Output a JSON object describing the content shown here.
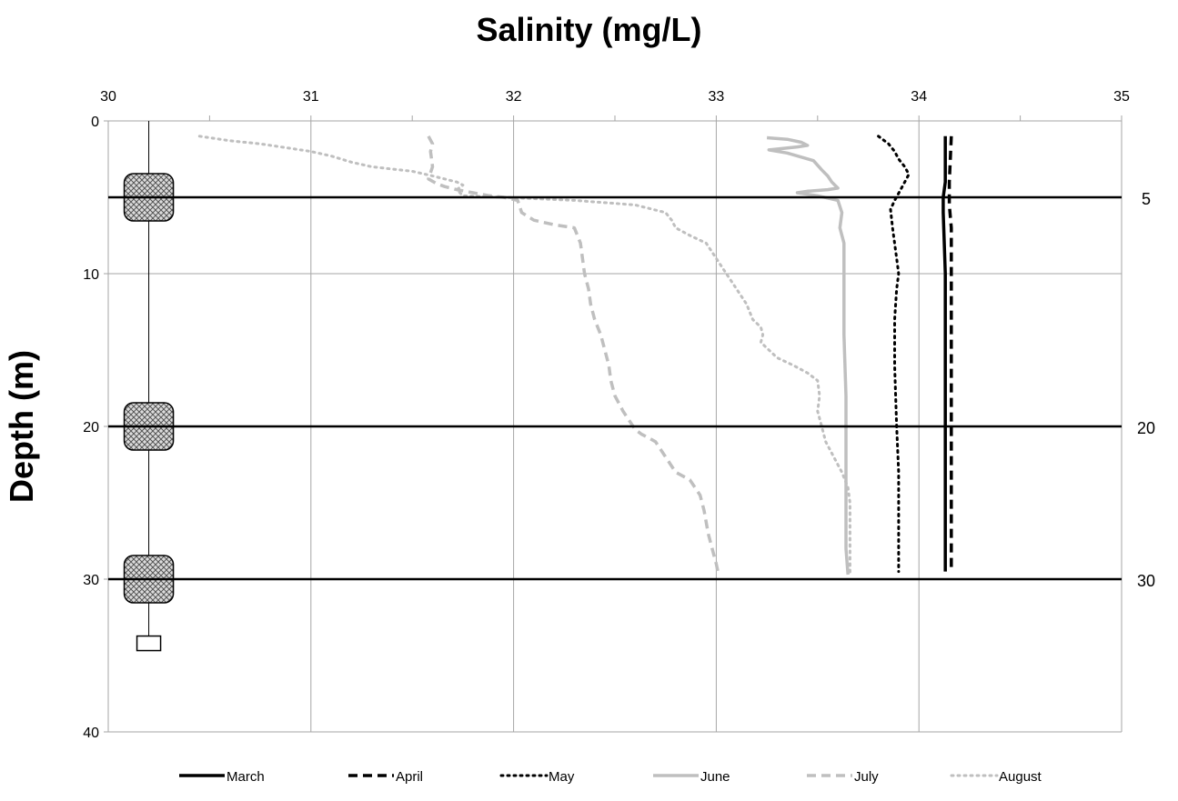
{
  "chart_data": {
    "type": "line",
    "title": "Salinity (mg/L)",
    "xlabel": "",
    "ylabel": "Depth (m)",
    "xlim": [
      30,
      35
    ],
    "ylim": [
      0,
      40
    ],
    "y_reversed": true,
    "x_axis_position": "top",
    "x_ticks": [
      "30",
      "31",
      "32",
      "33",
      "34",
      "35"
    ],
    "y_ticks": [
      "0",
      "10",
      "20",
      "30",
      "40"
    ],
    "secondary_y_ticks": [
      "5",
      "20",
      "30"
    ],
    "grid": true,
    "legend_position": "bottom",
    "reference_depths": [
      5,
      20,
      30
    ],
    "mooring": {
      "x": 30.2,
      "top_depth": 0,
      "bottom_depth": 34.2,
      "sensor_depths": [
        5,
        20,
        30
      ],
      "anchor_depth": 34.2
    },
    "series": [
      {
        "name": "March",
        "style": "solid-black",
        "x": [
          34.13,
          34.13,
          34.12,
          34.12,
          34.13,
          34.13,
          34.13,
          34.13,
          34.13
        ],
        "y": [
          1,
          4,
          5,
          6,
          10,
          15,
          20,
          25,
          29.5
        ]
      },
      {
        "name": "April",
        "style": "dashed-black",
        "x": [
          34.16,
          34.15,
          34.15,
          34.16,
          34.16,
          34.16,
          34.16,
          34.16,
          34.16
        ],
        "y": [
          1,
          4,
          5.5,
          7,
          12,
          18,
          22,
          26,
          29.5
        ]
      },
      {
        "name": "May",
        "style": "dotted-black",
        "x": [
          33.8,
          33.85,
          33.88,
          33.9,
          33.93,
          33.95,
          33.91,
          33.88,
          33.86,
          33.87,
          33.89,
          33.9,
          33.89,
          33.88,
          33.88,
          33.89,
          33.9,
          33.9,
          33.9
        ],
        "y": [
          1,
          1.5,
          2,
          2.5,
          3,
          3.5,
          4.5,
          5.2,
          5.8,
          7,
          9,
          10,
          11,
          13,
          16,
          20,
          23,
          26,
          29.5
        ]
      },
      {
        "name": "June",
        "style": "solid-gray",
        "x": [
          33.25,
          33.35,
          33.42,
          33.45,
          33.4,
          33.33,
          33.26,
          33.35,
          33.48,
          33.52,
          33.55,
          33.57,
          33.6,
          33.55,
          33.45,
          33.4,
          33.5,
          33.6,
          33.62,
          33.61,
          33.63,
          33.63,
          33.63,
          33.64,
          33.64,
          33.64,
          33.64,
          33.64,
          33.65
        ],
        "y": [
          1.1,
          1.2,
          1.4,
          1.6,
          1.7,
          1.8,
          1.9,
          2.1,
          2.6,
          3.2,
          3.6,
          4.0,
          4.4,
          4.5,
          4.6,
          4.7,
          4.9,
          5.2,
          6,
          7,
          8,
          10,
          14,
          18,
          20,
          22,
          25,
          28,
          29.7
        ]
      },
      {
        "name": "July",
        "style": "dashed-gray",
        "x": [
          31.58,
          31.6,
          31.59,
          31.6,
          31.58,
          31.62,
          31.66,
          31.72,
          31.8,
          31.88,
          31.95,
          32.02,
          32.04,
          32.1,
          32.2,
          32.3,
          32.33,
          32.35,
          32.37,
          32.38,
          32.4,
          32.43,
          32.45,
          32.47,
          32.48,
          32.5,
          32.52,
          32.54,
          32.57,
          32.6,
          32.63,
          32.66,
          32.7,
          32.75,
          32.8,
          32.87,
          32.92,
          32.94,
          32.96,
          32.98,
          33.0,
          33.01
        ],
        "y": [
          1,
          1.5,
          2,
          3,
          3.8,
          4.1,
          4.3,
          4.5,
          4.7,
          4.9,
          5.0,
          5.2,
          6.0,
          6.5,
          6.8,
          7.0,
          8,
          10,
          11,
          12,
          13,
          14,
          15,
          16,
          17,
          18,
          18.5,
          19,
          19.6,
          20.2,
          20.5,
          20.7,
          21,
          22,
          23,
          23.5,
          24.5,
          25.5,
          27,
          28,
          29,
          29.6
        ]
      },
      {
        "name": "August",
        "style": "dotted-gray",
        "x": [
          30.45,
          30.6,
          30.75,
          30.9,
          31.0,
          31.1,
          31.2,
          31.3,
          31.5,
          31.6,
          31.72,
          31.75,
          31.72,
          31.75,
          31.95,
          32.3,
          32.6,
          32.75,
          32.78,
          32.8,
          32.87,
          32.95,
          33.0,
          33.05,
          33.1,
          33.15,
          33.18,
          33.22,
          33.23,
          33.22,
          33.26,
          33.3,
          33.38,
          33.45,
          33.5,
          33.51,
          33.5,
          33.52,
          33.54,
          33.58,
          33.62,
          33.65,
          33.66,
          33.66,
          33.66
        ],
        "y": [
          1,
          1.3,
          1.5,
          1.8,
          2.0,
          2.3,
          2.7,
          3.0,
          3.3,
          3.6,
          4.0,
          4.2,
          4.5,
          4.9,
          5.0,
          5.2,
          5.5,
          6.0,
          6.5,
          7.0,
          7.5,
          8.0,
          9,
          10,
          11,
          12,
          13,
          13.5,
          14,
          14.5,
          15,
          15.5,
          16,
          16.5,
          17,
          18,
          19,
          20,
          21,
          22,
          23,
          24,
          25,
          28,
          29.7
        ]
      }
    ]
  },
  "colors": {
    "black": "#000000",
    "gray": "#bfbfbf",
    "grid": "#a6a6a6",
    "mooring_fill": "#d0d0d0"
  }
}
